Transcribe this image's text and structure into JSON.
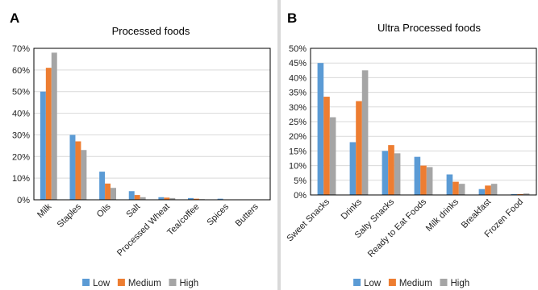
{
  "panels": [
    {
      "letter": "A"
    },
    {
      "letter": "B"
    }
  ],
  "legend": [
    "Low",
    "Medium",
    "High"
  ],
  "colors": {
    "Low": "#5B9BD5",
    "Medium": "#ED7D31",
    "High": "#A5A5A5",
    "divider": "#d9d9d9"
  },
  "chart_data": [
    {
      "type": "bar",
      "title": "Processed foods",
      "categories": [
        "Milk",
        "Staples",
        "Oils",
        "Salt",
        "Processed Wheat",
        "Tea/coffee",
        "Spices",
        "Butters"
      ],
      "series": [
        {
          "name": "Low",
          "values": [
            50,
            30,
            13,
            4,
            1.2,
            0.8,
            0.5,
            0
          ]
        },
        {
          "name": "Medium",
          "values": [
            61,
            27,
            7.5,
            2.2,
            1.0,
            0.5,
            0,
            0
          ]
        },
        {
          "name": "High",
          "values": [
            68,
            23,
            5.5,
            1.2,
            0.8,
            0.3,
            0,
            0
          ]
        }
      ],
      "ylim": [
        0,
        70
      ],
      "yticks": [
        "0%",
        "10%",
        "20%",
        "30%",
        "40%",
        "50%",
        "60%",
        "70%"
      ],
      "unit": "%",
      "grid": true,
      "legend_position": "bottom"
    },
    {
      "type": "bar",
      "title": "Ultra Processed foods",
      "categories": [
        "Sweet Snacks",
        "Drinks",
        "Salty Snacks",
        "Ready to Eat Foods",
        "Milk drinks",
        "Breakfast",
        "Frozen Food"
      ],
      "series": [
        {
          "name": "Low",
          "values": [
            45,
            18,
            15,
            13,
            7,
            2,
            0.3
          ]
        },
        {
          "name": "Medium",
          "values": [
            33.5,
            32,
            17,
            10,
            4.5,
            3.2,
            0.3
          ]
        },
        {
          "name": "High",
          "values": [
            26.5,
            42.5,
            14.2,
            9.5,
            3.8,
            3.8,
            0.5
          ]
        }
      ],
      "ylim": [
        0,
        50
      ],
      "yticks": [
        "0%",
        "5%",
        "10%",
        "15%",
        "20%",
        "25%",
        "30%",
        "35%",
        "40%",
        "45%",
        "50%"
      ],
      "unit": "%",
      "grid": true,
      "legend_position": "bottom"
    }
  ]
}
